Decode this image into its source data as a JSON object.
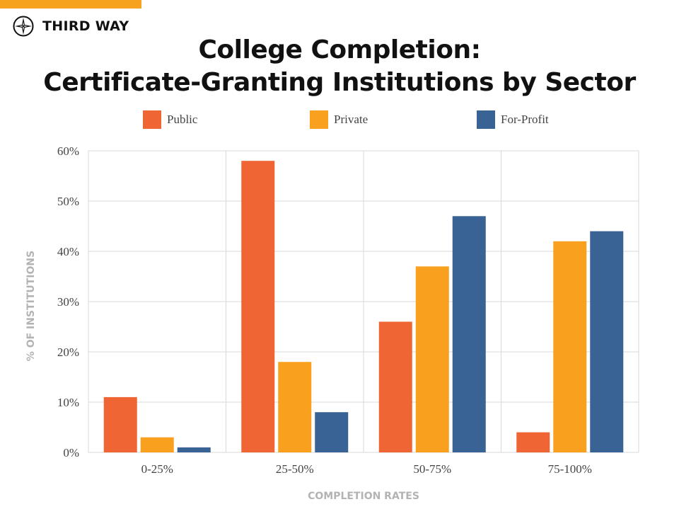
{
  "brand": {
    "name": "THIRD WAY",
    "logo_icon": "compass-star-icon"
  },
  "colors": {
    "public": "#ef6534",
    "private": "#f9a11e",
    "for_profit": "#396395",
    "top_bar": "#f6a21f",
    "grid": "#d9d9d9",
    "axis_title": "#b3b3b3"
  },
  "chart_data": {
    "type": "bar",
    "title": "College Completion:\nCertificate-Granting Institutions by Sector",
    "title_lines": [
      "College Completion:",
      "Certificate-Granting Institutions by Sector"
    ],
    "xlabel": "COMPLETION RATES",
    "ylabel": "% OF INSTITUTIONS",
    "categories": [
      "0-25%",
      "25-50%",
      "50-75%",
      "75-100%"
    ],
    "series": [
      {
        "name": "Public",
        "color": "#ef6534",
        "values": [
          11,
          58,
          26,
          4
        ]
      },
      {
        "name": "Private",
        "color": "#f9a11e",
        "values": [
          3,
          18,
          37,
          42
        ]
      },
      {
        "name": "For-Profit",
        "color": "#396395",
        "values": [
          1,
          8,
          47,
          44
        ]
      }
    ],
    "ylim": [
      0,
      60
    ],
    "yticks": [
      0,
      10,
      20,
      30,
      40,
      50,
      60
    ],
    "ytick_labels": [
      "0%",
      "10%",
      "20%",
      "30%",
      "40%",
      "50%",
      "60%"
    ],
    "grid": true,
    "legend_position": "top"
  }
}
